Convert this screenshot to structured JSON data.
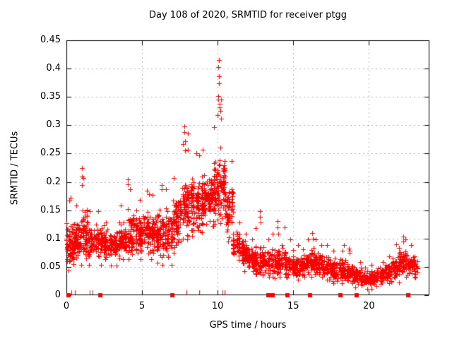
{
  "figure": {
    "background": "#ffffff",
    "border_color": "#000000"
  },
  "chart_data": {
    "type": "scatter",
    "title": "Day 108 of 2020, SRMTID for receiver ptgg",
    "xlabel": "GPS time / hours",
    "ylabel": "SRMTID / TECUs",
    "xlim": [
      0,
      24
    ],
    "ylim": [
      0,
      0.45
    ],
    "xticks": {
      "values": [
        0,
        5,
        10,
        15,
        20
      ],
      "labels": [
        "0",
        "5",
        "10",
        "15",
        "20"
      ]
    },
    "yticks": {
      "values": [
        0,
        0.05,
        0.1,
        0.15,
        0.2,
        0.25,
        0.3,
        0.35,
        0.4,
        0.45
      ],
      "labels": [
        "0",
        "0.05",
        "0.1",
        "0.15",
        "0.2",
        "0.25",
        "0.3",
        "0.35",
        "0.4",
        "0.45"
      ]
    },
    "grid": {
      "visible": true,
      "style": "dashed",
      "color": "#b0b0b0"
    },
    "legend": "none",
    "marker": {
      "type": "plus",
      "color": "#ff0000",
      "size": 7
    },
    "zero_marker": {
      "type": "filled-square",
      "color": "#ff0000",
      "size": 6
    },
    "seed": 108,
    "series": [
      {
        "name": "SRMTID",
        "kind": "binned_scatter",
        "bin_format": [
          "hour_start",
          "hour_end",
          "y_min",
          "y_max",
          "y_center",
          "count"
        ],
        "bins": [
          [
            0.0,
            0.5,
            0.04,
            0.17,
            0.09,
            75
          ],
          [
            0.5,
            1.0,
            0.05,
            0.16,
            0.1,
            70
          ],
          [
            1.0,
            1.5,
            0.06,
            0.21,
            0.11,
            65
          ],
          [
            1.5,
            2.0,
            0.05,
            0.15,
            0.095,
            65
          ],
          [
            2.0,
            2.5,
            0.05,
            0.15,
            0.095,
            60
          ],
          [
            2.5,
            3.0,
            0.05,
            0.13,
            0.09,
            60
          ],
          [
            3.0,
            3.5,
            0.05,
            0.13,
            0.088,
            55
          ],
          [
            3.5,
            4.0,
            0.06,
            0.16,
            0.1,
            60
          ],
          [
            4.0,
            4.5,
            0.06,
            0.19,
            0.11,
            62
          ],
          [
            4.5,
            5.0,
            0.06,
            0.17,
            0.11,
            65
          ],
          [
            5.0,
            5.5,
            0.07,
            0.18,
            0.115,
            62
          ],
          [
            5.5,
            6.0,
            0.06,
            0.18,
            0.11,
            62
          ],
          [
            6.0,
            6.5,
            0.05,
            0.19,
            0.108,
            62
          ],
          [
            6.5,
            7.0,
            0.05,
            0.19,
            0.105,
            62
          ],
          [
            7.0,
            7.5,
            0.07,
            0.21,
            0.13,
            62
          ],
          [
            7.5,
            8.0,
            0.09,
            0.27,
            0.158,
            66
          ],
          [
            8.0,
            8.5,
            0.1,
            0.26,
            0.162,
            66
          ],
          [
            8.5,
            9.0,
            0.11,
            0.25,
            0.16,
            66
          ],
          [
            9.0,
            9.5,
            0.12,
            0.26,
            0.168,
            70
          ],
          [
            9.5,
            10.0,
            0.12,
            0.3,
            0.178,
            75
          ],
          [
            10.0,
            10.5,
            0.12,
            0.35,
            0.19,
            78
          ],
          [
            10.5,
            11.0,
            0.09,
            0.24,
            0.15,
            62
          ],
          [
            11.0,
            11.5,
            0.06,
            0.13,
            0.09,
            56
          ],
          [
            11.5,
            12.0,
            0.04,
            0.11,
            0.075,
            58
          ],
          [
            12.0,
            12.5,
            0.04,
            0.1,
            0.065,
            58
          ],
          [
            12.5,
            13.0,
            0.035,
            0.12,
            0.06,
            56
          ],
          [
            13.0,
            13.5,
            0.03,
            0.1,
            0.058,
            54
          ],
          [
            13.5,
            14.0,
            0.03,
            0.11,
            0.055,
            56
          ],
          [
            14.0,
            14.5,
            0.03,
            0.11,
            0.06,
            56
          ],
          [
            14.5,
            15.0,
            0.03,
            0.1,
            0.055,
            56
          ],
          [
            15.0,
            15.5,
            0.025,
            0.09,
            0.05,
            54
          ],
          [
            15.5,
            16.0,
            0.03,
            0.1,
            0.055,
            56
          ],
          [
            16.0,
            16.5,
            0.03,
            0.1,
            0.06,
            56
          ],
          [
            16.5,
            17.0,
            0.03,
            0.09,
            0.055,
            54
          ],
          [
            17.0,
            17.5,
            0.025,
            0.09,
            0.05,
            56
          ],
          [
            17.5,
            18.0,
            0.02,
            0.08,
            0.045,
            56
          ],
          [
            18.0,
            18.5,
            0.02,
            0.08,
            0.045,
            56
          ],
          [
            18.5,
            19.0,
            0.02,
            0.08,
            0.04,
            54
          ],
          [
            19.0,
            19.5,
            0.012,
            0.06,
            0.035,
            56
          ],
          [
            19.5,
            20.0,
            0.01,
            0.05,
            0.03,
            56
          ],
          [
            20.0,
            20.5,
            0.01,
            0.055,
            0.03,
            56
          ],
          [
            20.5,
            21.0,
            0.015,
            0.06,
            0.035,
            54
          ],
          [
            21.0,
            21.5,
            0.02,
            0.07,
            0.04,
            54
          ],
          [
            21.5,
            22.0,
            0.02,
            0.085,
            0.05,
            54
          ],
          [
            22.0,
            22.5,
            0.03,
            0.1,
            0.06,
            56
          ],
          [
            22.5,
            23.0,
            0.03,
            0.09,
            0.055,
            52
          ],
          [
            23.0,
            23.2,
            0.03,
            0.06,
            0.045,
            12
          ]
        ]
      }
    ],
    "outlier_points": [
      [
        0.28,
        0.172
      ],
      [
        1.02,
        0.224
      ],
      [
        1.02,
        0.21
      ],
      [
        1.04,
        0.195
      ],
      [
        4.05,
        0.205
      ],
      [
        4.07,
        0.196
      ],
      [
        5.3,
        0.185
      ],
      [
        6.3,
        0.195
      ],
      [
        7.82,
        0.298
      ],
      [
        7.82,
        0.288
      ],
      [
        7.84,
        0.272
      ],
      [
        7.86,
        0.255
      ],
      [
        8.02,
        0.285
      ],
      [
        8.6,
        0.25
      ],
      [
        10.05,
        0.403
      ],
      [
        10.07,
        0.415
      ],
      [
        10.08,
        0.386
      ],
      [
        10.1,
        0.374
      ],
      [
        10.02,
        0.352
      ],
      [
        10.05,
        0.345
      ],
      [
        10.12,
        0.338
      ],
      [
        10.15,
        0.332
      ],
      [
        10.18,
        0.325
      ],
      [
        9.98,
        0.318
      ],
      [
        10.22,
        0.312
      ],
      [
        12.8,
        0.148
      ],
      [
        12.8,
        0.138
      ],
      [
        12.82,
        0.128
      ],
      [
        13.97,
        0.131
      ],
      [
        13.98,
        0.12
      ],
      [
        14.45,
        0.12
      ],
      [
        16.25,
        0.11
      ],
      [
        16.28,
        0.1
      ],
      [
        18.35,
        0.088
      ],
      [
        18.7,
        0.082
      ],
      [
        18.72,
        0.075
      ],
      [
        21.8,
        0.09
      ],
      [
        22.25,
        0.103
      ],
      [
        22.28,
        0.095
      ]
    ],
    "zero_line_squares_hours": [
      0.15,
      2.25,
      7.0,
      13.35,
      13.65,
      14.6,
      16.1,
      18.1,
      19.2,
      22.6
    ],
    "zero_line_ticks_hours": [
      0.35,
      0.55,
      1.55,
      1.75,
      7.95,
      8.8,
      10.3,
      10.45
    ]
  }
}
